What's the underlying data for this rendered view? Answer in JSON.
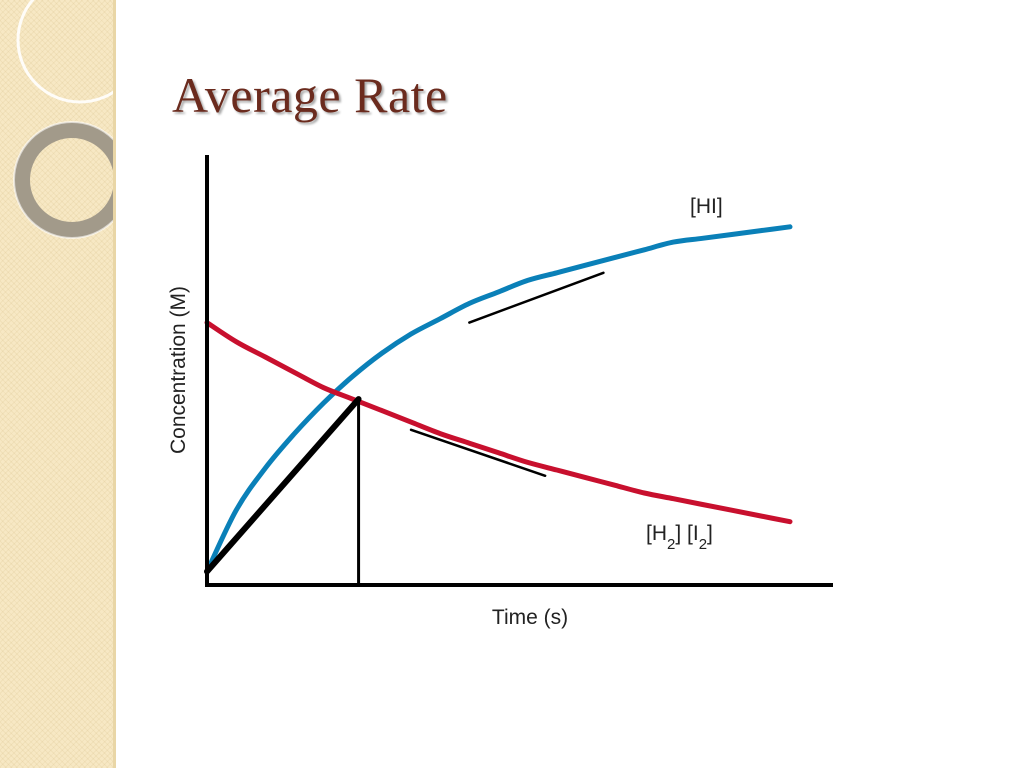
{
  "slide": {
    "title": "Average Rate"
  },
  "colors": {
    "title": "#6b2b1e",
    "band": "#f7e8c4",
    "hi_curve": "#0a80b8",
    "reactant_curve": "#c8102e",
    "axes": "#000000"
  },
  "chart_data": {
    "type": "line",
    "title": "",
    "xlabel": "Time (s)",
    "ylabel": "Concentration (M)",
    "xlim": [
      0,
      10
    ],
    "ylim": [
      0,
      10
    ],
    "grid": false,
    "series": [
      {
        "name": "[HI]",
        "color": "#0a80b8",
        "x": [
          0,
          0.5,
          1,
          1.5,
          2,
          2.5,
          3,
          3.5,
          4,
          4.5,
          5,
          5.5,
          6,
          6.5,
          7,
          7.5,
          8,
          8.5,
          9,
          9.5,
          10
        ],
        "y": [
          0.3,
          1.9,
          3.0,
          3.9,
          4.7,
          5.4,
          6.0,
          6.5,
          6.9,
          7.3,
          7.6,
          7.9,
          8.1,
          8.3,
          8.5,
          8.7,
          8.9,
          9.0,
          9.1,
          9.2,
          9.3
        ]
      },
      {
        "name": "[H2] [I2]",
        "color": "#c8102e",
        "x": [
          0,
          0.5,
          1,
          1.5,
          2,
          2.5,
          3,
          3.5,
          4,
          4.5,
          5,
          5.5,
          6,
          6.5,
          7,
          7.5,
          8,
          8.5,
          9,
          9.5,
          10
        ],
        "y": [
          6.8,
          6.3,
          5.9,
          5.5,
          5.1,
          4.8,
          4.5,
          4.2,
          3.9,
          3.65,
          3.4,
          3.15,
          2.95,
          2.75,
          2.55,
          2.35,
          2.2,
          2.05,
          1.9,
          1.75,
          1.6
        ]
      }
    ],
    "annotations": [
      {
        "kind": "secant",
        "from": [
          0,
          0.3
        ],
        "to": [
          2.6,
          4.8
        ]
      },
      {
        "kind": "vertical",
        "x": 2.6,
        "from_y": 0,
        "to_y": 4.8
      },
      {
        "kind": "tangent",
        "from": [
          4.5,
          6.8
        ],
        "to": [
          6.8,
          8.1
        ]
      },
      {
        "kind": "tangent",
        "from": [
          3.5,
          4.0
        ],
        "to": [
          5.8,
          2.8
        ]
      }
    ]
  }
}
